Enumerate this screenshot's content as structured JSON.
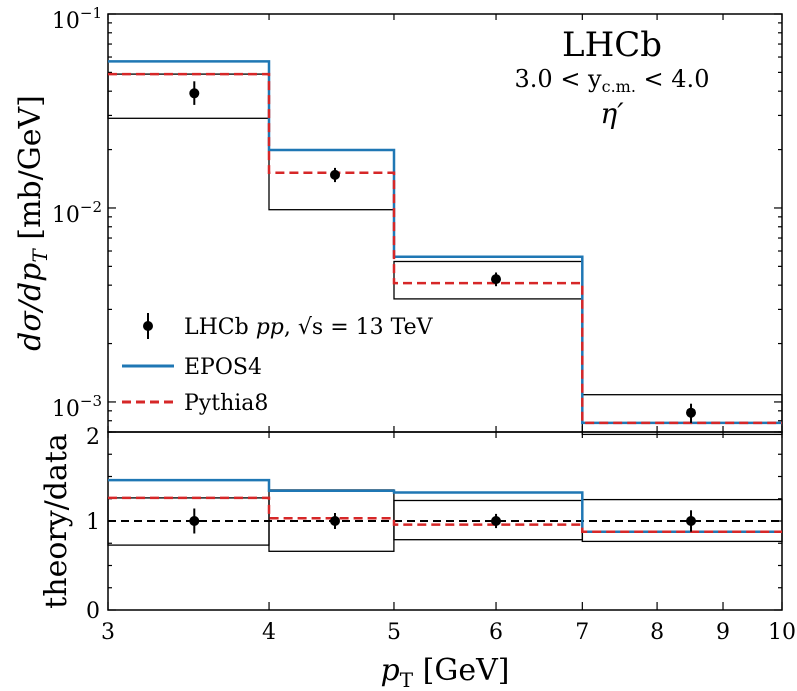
{
  "chart_data": [
    {
      "panel": "main",
      "type": "line",
      "yscale": "log",
      "title": "LHCb",
      "subtitle_rapidity": "3.0 < y",
      "subtitle_rapidity_sub": "c.m.",
      "subtitle_rapidity_tail": " < 4.0",
      "particle": "η′",
      "ylabel_prefix": "dσ/dp",
      "ylabel_sub": "T",
      "ylabel_suffix": " [mb/GeV]",
      "xlim": [
        3,
        10
      ],
      "ylim": [
        0.0007,
        0.1
      ],
      "y_tick_labels": [
        {
          "value": 0.1,
          "base": "10",
          "exp": "−1"
        },
        {
          "value": 0.01,
          "base": "10",
          "exp": "−2"
        },
        {
          "value": 0.001,
          "base": "10",
          "exp": "−3"
        }
      ],
      "bin_edges": [
        3,
        4,
        5,
        7,
        10
      ],
      "data": {
        "name": "LHCb pp, √s = 13 TeV",
        "legend_parts": [
          "LHCb ",
          "pp",
          ", ",
          "√s",
          " = 13 TeV"
        ],
        "x": [
          3.5,
          4.5,
          6.0,
          8.5
        ],
        "y": [
          0.039,
          0.0148,
          0.0043,
          0.00088
        ],
        "err_low": [
          0.005,
          0.0012,
          0.00035,
          0.0001
        ],
        "err_high": [
          0.006,
          0.0013,
          0.00035,
          0.0001
        ],
        "syst_low": [
          0.029,
          0.0098,
          0.0034,
          0.00068
        ],
        "syst_high": [
          0.049,
          0.0199,
          0.0053,
          0.00109
        ],
        "color": "#000000"
      },
      "series": [
        {
          "name": "EPOS4",
          "values": [
            0.057,
            0.0199,
            0.0056,
            0.00078
          ],
          "color": "#1f77b4",
          "style": "solid"
        },
        {
          "name": "Pythia8",
          "values": [
            0.049,
            0.0152,
            0.0041,
            0.00078
          ],
          "color": "#d62728",
          "style": "dashed"
        }
      ]
    },
    {
      "panel": "ratio",
      "type": "line",
      "ylabel": "theory/data",
      "xlabel_prefix": "p",
      "xlabel_sub": "T",
      "xlabel_suffix": " [GeV]",
      "xscale": "log",
      "xlim": [
        3,
        10
      ],
      "ylim": [
        0,
        2
      ],
      "x_ticks": [
        3,
        4,
        5,
        6,
        7,
        8,
        9,
        10
      ],
      "y_ticks": [
        0,
        1,
        2
      ],
      "reference_line": 1,
      "bin_edges": [
        3,
        4,
        5,
        7,
        10
      ],
      "data": {
        "x": [
          3.5,
          4.5,
          6.0,
          8.5
        ],
        "y": [
          1.0,
          1.0,
          1.0,
          1.0
        ],
        "err": [
          0.14,
          0.09,
          0.08,
          0.12
        ]
      },
      "syst_low": [
        0.73,
        0.66,
        0.79,
        0.77
      ],
      "syst_high": [
        1.26,
        1.35,
        1.23,
        1.24
      ],
      "series": [
        {
          "name": "EPOS4",
          "values": [
            1.46,
            1.34,
            1.32,
            0.88
          ],
          "color": "#1f77b4",
          "style": "solid"
        },
        {
          "name": "Pythia8",
          "values": [
            1.26,
            1.03,
            0.96,
            0.88
          ],
          "color": "#d62728",
          "style": "dashed"
        }
      ]
    }
  ]
}
